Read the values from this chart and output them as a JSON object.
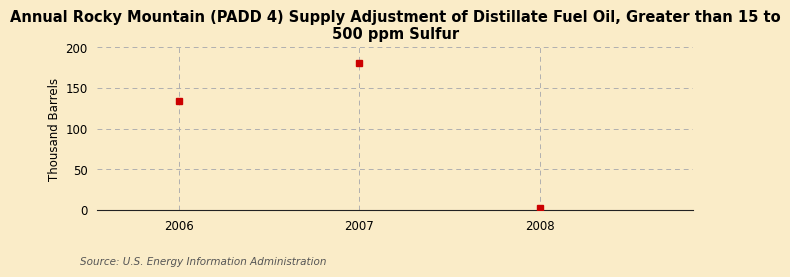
{
  "title": "Annual Rocky Mountain (PADD 4) Supply Adjustment of Distillate Fuel Oil, Greater than 15 to\n500 ppm Sulfur",
  "ylabel": "Thousand Barrels",
  "source": "Source: U.S. Energy Information Administration",
  "x": [
    2006,
    2007,
    2008
  ],
  "y": [
    134,
    181,
    2
  ],
  "xlim": [
    2005.55,
    2008.85
  ],
  "ylim": [
    0,
    200
  ],
  "yticks": [
    0,
    50,
    100,
    150,
    200
  ],
  "xticks": [
    2006,
    2007,
    2008
  ],
  "marker_color": "#cc0000",
  "marker": "s",
  "marker_size": 4,
  "bg_color": "#faecc8",
  "plot_bg_color": "#faecc8",
  "grid_color": "#b0b0b0",
  "title_fontsize": 10.5,
  "axis_fontsize": 8.5,
  "tick_fontsize": 8.5,
  "source_fontsize": 7.5
}
